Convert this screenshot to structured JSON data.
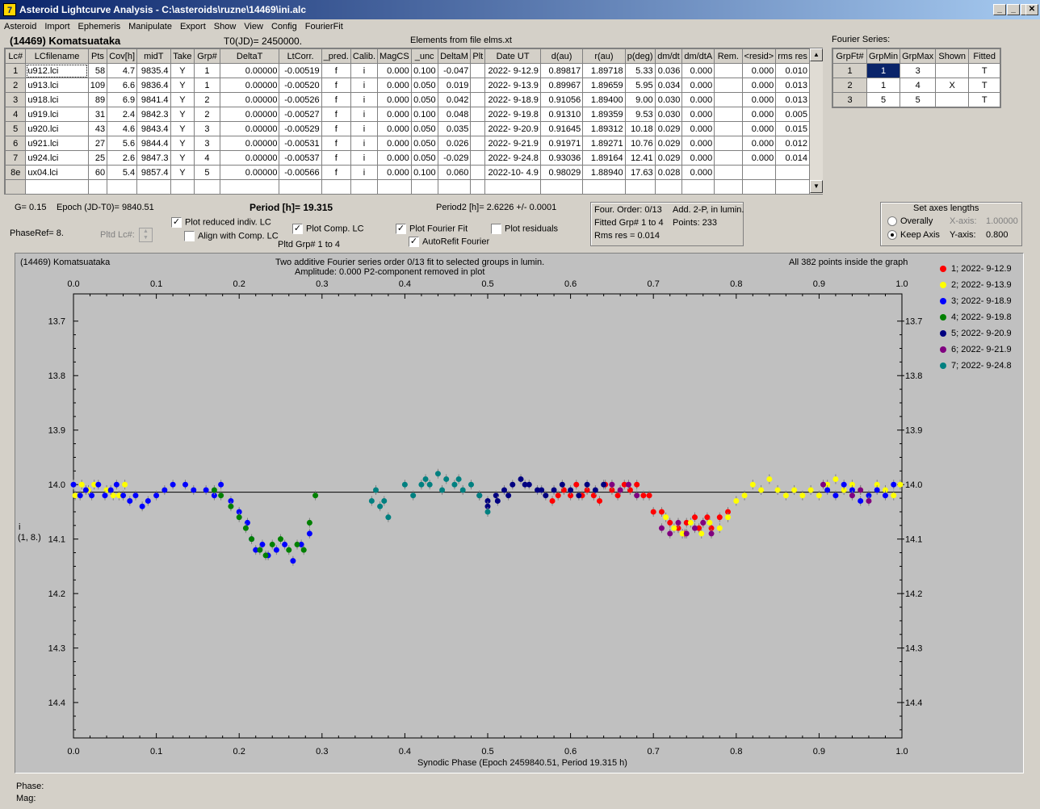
{
  "window": {
    "title": "Asteroid Lightcurve Analysis - C:\\asteroids\\ruzne\\14469\\ini.alc",
    "icon_label": "7"
  },
  "menu": [
    "Asteroid",
    "Import",
    "Ephemeris",
    "Manipulate",
    "Export",
    "Show",
    "View",
    "Config",
    "FourierFit"
  ],
  "header": {
    "asteroid": "(14469) Komatsuataka",
    "t0": "T0(JD)= 2450000.",
    "elements": "Elements from file elms.xt"
  },
  "lc_table": {
    "columns": [
      "Lc#",
      "LCfilename",
      "Pts",
      "Cov[h]",
      "midT",
      "Take",
      "Grp#",
      "DeltaT",
      "LtCorr.",
      "_pred.",
      "Calib.",
      "MagCS",
      "_unc",
      "DeltaM",
      "Plt",
      "Date UT",
      "d(au)",
      "r(au)",
      "p(deg)",
      "dm/dt",
      "dm/dtA",
      "Rem.",
      "<resid>",
      "rms res"
    ],
    "rows": [
      [
        "1",
        "u912.lci",
        "58",
        "4.7",
        "9835.4",
        "Y",
        "1",
        "0.00000",
        "-0.00519",
        "f",
        "i",
        "0.000",
        "0.100",
        "-0.047",
        "",
        "2022- 9-12.9",
        "0.89817",
        "1.89718",
        "5.33",
        "0.036",
        "0.000",
        "",
        "0.000",
        "0.010"
      ],
      [
        "2",
        "u913.lci",
        "109",
        "6.6",
        "9836.4",
        "Y",
        "1",
        "0.00000",
        "-0.00520",
        "f",
        "i",
        "0.000",
        "0.050",
        "0.019",
        "",
        "2022- 9-13.9",
        "0.89967",
        "1.89659",
        "5.95",
        "0.034",
        "0.000",
        "",
        "0.000",
        "0.013"
      ],
      [
        "3",
        "u918.lci",
        "89",
        "6.9",
        "9841.4",
        "Y",
        "2",
        "0.00000",
        "-0.00526",
        "f",
        "i",
        "0.000",
        "0.050",
        "0.042",
        "",
        "2022- 9-18.9",
        "0.91056",
        "1.89400",
        "9.00",
        "0.030",
        "0.000",
        "",
        "0.000",
        "0.013"
      ],
      [
        "4",
        "u919.lci",
        "31",
        "2.4",
        "9842.3",
        "Y",
        "2",
        "0.00000",
        "-0.00527",
        "f",
        "i",
        "0.000",
        "0.100",
        "0.048",
        "",
        "2022- 9-19.8",
        "0.91310",
        "1.89359",
        "9.53",
        "0.030",
        "0.000",
        "",
        "0.000",
        "0.005"
      ],
      [
        "5",
        "u920.lci",
        "43",
        "4.6",
        "9843.4",
        "Y",
        "3",
        "0.00000",
        "-0.00529",
        "f",
        "i",
        "0.000",
        "0.050",
        "0.035",
        "",
        "2022- 9-20.9",
        "0.91645",
        "1.89312",
        "10.18",
        "0.029",
        "0.000",
        "",
        "0.000",
        "0.015"
      ],
      [
        "6",
        "u921.lci",
        "27",
        "5.6",
        "9844.4",
        "Y",
        "3",
        "0.00000",
        "-0.00531",
        "f",
        "i",
        "0.000",
        "0.050",
        "0.026",
        "",
        "2022- 9-21.9",
        "0.91971",
        "1.89271",
        "10.76",
        "0.029",
        "0.000",
        "",
        "0.000",
        "0.012"
      ],
      [
        "7",
        "u924.lci",
        "25",
        "2.6",
        "9847.3",
        "Y",
        "4",
        "0.00000",
        "-0.00537",
        "f",
        "i",
        "0.000",
        "0.050",
        "-0.029",
        "",
        "2022- 9-24.8",
        "0.93036",
        "1.89164",
        "12.41",
        "0.029",
        "0.000",
        "",
        "0.000",
        "0.014"
      ],
      [
        "8e",
        "ux04.lci",
        "60",
        "5.4",
        "9857.4",
        "Y",
        "5",
        "0.00000",
        "-0.00566",
        "f",
        "i",
        "0.000",
        "0.100",
        "0.060",
        "",
        "2022-10- 4.9",
        "0.98029",
        "1.88940",
        "17.63",
        "0.028",
        "0.000",
        "",
        "",
        ""
      ]
    ]
  },
  "fourier_series": {
    "title": "Fourier Series:",
    "columns": [
      "GrpFt#",
      "GrpMin",
      "GrpMax",
      "Shown",
      "Fitted"
    ],
    "rows": [
      [
        "1",
        "1",
        "3",
        "",
        "T"
      ],
      [
        "2",
        "1",
        "4",
        "X",
        "T"
      ],
      [
        "3",
        "5",
        "5",
        "",
        "T"
      ]
    ]
  },
  "controls": {
    "g_value": "G= 0.15",
    "epoch": "Epoch (JD-T0)= 9840.51",
    "period": "Period [h]= 19.315",
    "period2": "Period2 [h]= 2.6226 +/- 0.0001",
    "phase_ref": "PhaseRef= 8.",
    "pltd_lc": "Pltd Lc#:",
    "plot_reduced": "Plot reduced indiv. LC",
    "align_comp": "Align with Comp. LC",
    "plot_comp": "Plot Comp. LC",
    "pltd_grp": "Pltd Grp#  1   to   4",
    "plot_fourier": "Plot Fourier Fit",
    "autorefit": "AutoRefit Fourier",
    "plot_residuals": "Plot residuals",
    "check_mark": "✓"
  },
  "fourier_info": {
    "order": "Four. Order:  0/13",
    "add": "Add. 2-P, in lumin.",
    "fitted": "Fitted Grp# 1 to 4",
    "points": "Points: 233",
    "rms": "Rms res     = 0.014"
  },
  "axes_box": {
    "title": "Set axes lengths",
    "overally": "Overally",
    "keep_axis": "Keep Axis",
    "xaxis_label": "X-axis:",
    "xaxis_value": "1.00000",
    "yaxis_label": "Y-axis:",
    "yaxis_value": "0.800"
  },
  "plot_text": {
    "name": "(14469) Komatsuataka",
    "subtitle1": "Two additive Fourier series order 0/13 fit to selected groups in lumin.",
    "subtitle2": "Amplitude: 0.000                  P2-component removed in plot",
    "points_info": "All 382 points inside the graph",
    "ylabel1": "i",
    "ylabel2": "(1, 8.)",
    "xlabel": "Synodic Phase (Epoch 2459840.51, Period 19.315 h)"
  },
  "status": {
    "phase": "Phase:",
    "mag": "Mag:"
  },
  "chart_data": {
    "type": "scatter",
    "xlabel": "Synodic Phase (Epoch 2459840.51, Period 19.315 h)",
    "ylabel": "i (1, 8.)",
    "xlim": [
      0.0,
      1.0
    ],
    "ylim": [
      13.65,
      14.465
    ],
    "y_inverted": true,
    "xticks": [
      "0.0",
      "0.1",
      "0.2",
      "0.3",
      "0.4",
      "0.5",
      "0.6",
      "0.7",
      "0.8",
      "0.9",
      "1.0"
    ],
    "yticks": [
      "13.7",
      "13.8",
      "13.9",
      "14.0",
      "14.1",
      "14.2",
      "14.3",
      "14.4"
    ],
    "fit_line": 14.014,
    "legend_position": "right",
    "series": [
      {
        "name": "1; 2022- 9-12.9",
        "color": "#ff0000",
        "points": [
          [
            0.578,
            14.03
          ],
          [
            0.585,
            14.02
          ],
          [
            0.592,
            14.01
          ],
          [
            0.6,
            14.02
          ],
          [
            0.607,
            14.0
          ],
          [
            0.614,
            14.02
          ],
          [
            0.62,
            14.01
          ],
          [
            0.628,
            14.02
          ],
          [
            0.635,
            14.03
          ],
          [
            0.642,
            14.0
          ],
          [
            0.65,
            14.01
          ],
          [
            0.657,
            14.02
          ],
          [
            0.665,
            14.0
          ],
          [
            0.672,
            14.01
          ],
          [
            0.68,
            14.0
          ],
          [
            0.688,
            14.02
          ],
          [
            0.695,
            14.02
          ],
          [
            0.7,
            14.05
          ],
          [
            0.71,
            14.05
          ],
          [
            0.72,
            14.07
          ],
          [
            0.73,
            14.08
          ],
          [
            0.74,
            14.07
          ],
          [
            0.75,
            14.06
          ],
          [
            0.76,
            14.07
          ],
          [
            0.77,
            14.08
          ],
          [
            0.78,
            14.06
          ],
          [
            0.79,
            14.05
          ],
          [
            0.738,
            14.09
          ],
          [
            0.755,
            14.08
          ],
          [
            0.765,
            14.06
          ]
        ]
      },
      {
        "name": "2; 2022- 9-13.9",
        "color": "#ffff00",
        "points": [
          [
            0.002,
            14.02
          ],
          [
            0.01,
            14.0
          ],
          [
            0.018,
            14.01
          ],
          [
            0.025,
            14.0
          ],
          [
            0.04,
            14.01
          ],
          [
            0.048,
            14.02
          ],
          [
            0.055,
            14.02
          ],
          [
            0.062,
            14.0
          ],
          [
            0.715,
            14.06
          ],
          [
            0.725,
            14.08
          ],
          [
            0.735,
            14.09
          ],
          [
            0.745,
            14.07
          ],
          [
            0.758,
            14.09
          ],
          [
            0.768,
            14.07
          ],
          [
            0.78,
            14.08
          ],
          [
            0.79,
            14.06
          ],
          [
            0.8,
            14.03
          ],
          [
            0.81,
            14.02
          ],
          [
            0.82,
            14.0
          ],
          [
            0.83,
            14.01
          ],
          [
            0.84,
            13.99
          ],
          [
            0.85,
            14.01
          ],
          [
            0.86,
            14.02
          ],
          [
            0.87,
            14.01
          ],
          [
            0.88,
            14.02
          ],
          [
            0.89,
            14.01
          ],
          [
            0.9,
            14.02
          ],
          [
            0.91,
            14.0
          ],
          [
            0.92,
            13.99
          ],
          [
            0.93,
            14.01
          ],
          [
            0.94,
            14.0
          ],
          [
            0.95,
            14.01
          ],
          [
            0.96,
            14.02
          ],
          [
            0.97,
            14.0
          ],
          [
            0.98,
            14.01
          ],
          [
            0.99,
            14.02
          ],
          [
            0.998,
            14.0
          ]
        ]
      },
      {
        "name": "3; 2022- 9-18.9",
        "color": "#0000ff",
        "points": [
          [
            0.0,
            14.0
          ],
          [
            0.008,
            14.02
          ],
          [
            0.015,
            14.01
          ],
          [
            0.022,
            14.02
          ],
          [
            0.03,
            14.0
          ],
          [
            0.038,
            14.02
          ],
          [
            0.045,
            14.01
          ],
          [
            0.052,
            14.0
          ],
          [
            0.06,
            14.02
          ],
          [
            0.068,
            14.03
          ],
          [
            0.075,
            14.02
          ],
          [
            0.083,
            14.04
          ],
          [
            0.09,
            14.03
          ],
          [
            0.1,
            14.02
          ],
          [
            0.11,
            14.01
          ],
          [
            0.12,
            14.0
          ],
          [
            0.135,
            14.0
          ],
          [
            0.145,
            14.01
          ],
          [
            0.16,
            14.01
          ],
          [
            0.17,
            14.02
          ],
          [
            0.178,
            14.0
          ],
          [
            0.19,
            14.03
          ],
          [
            0.2,
            14.05
          ],
          [
            0.21,
            14.07
          ],
          [
            0.215,
            14.1
          ],
          [
            0.22,
            14.12
          ],
          [
            0.228,
            14.11
          ],
          [
            0.235,
            14.13
          ],
          [
            0.245,
            14.12
          ],
          [
            0.255,
            14.11
          ],
          [
            0.265,
            14.14
          ],
          [
            0.275,
            14.11
          ],
          [
            0.285,
            14.09
          ],
          [
            0.91,
            14.01
          ],
          [
            0.92,
            14.02
          ],
          [
            0.93,
            14.0
          ],
          [
            0.94,
            14.01
          ],
          [
            0.95,
            14.03
          ],
          [
            0.96,
            14.02
          ],
          [
            0.97,
            14.01
          ],
          [
            0.98,
            14.02
          ],
          [
            0.99,
            14.0
          ]
        ]
      },
      {
        "name": "4; 2022- 9-19.8",
        "color": "#008000",
        "points": [
          [
            0.17,
            14.01
          ],
          [
            0.178,
            14.02
          ],
          [
            0.19,
            14.04
          ],
          [
            0.2,
            14.06
          ],
          [
            0.208,
            14.08
          ],
          [
            0.215,
            14.1
          ],
          [
            0.225,
            14.12
          ],
          [
            0.232,
            14.13
          ],
          [
            0.24,
            14.11
          ],
          [
            0.25,
            14.1
          ],
          [
            0.26,
            14.12
          ],
          [
            0.27,
            14.11
          ],
          [
            0.278,
            14.12
          ],
          [
            0.285,
            14.07
          ],
          [
            0.292,
            14.02
          ]
        ]
      },
      {
        "name": "5; 2022- 9-20.9",
        "color": "#000080",
        "points": [
          [
            0.49,
            14.02
          ],
          [
            0.5,
            14.03
          ],
          [
            0.51,
            14.02
          ],
          [
            0.52,
            14.01
          ],
          [
            0.53,
            14.0
          ],
          [
            0.54,
            13.99
          ],
          [
            0.55,
            14.0
          ],
          [
            0.56,
            14.01
          ],
          [
            0.57,
            14.02
          ],
          [
            0.58,
            14.01
          ],
          [
            0.59,
            14.0
          ],
          [
            0.6,
            14.01
          ],
          [
            0.61,
            14.02
          ],
          [
            0.62,
            14.0
          ],
          [
            0.63,
            14.01
          ],
          [
            0.64,
            14.0
          ],
          [
            0.5,
            14.04
          ],
          [
            0.512,
            14.03
          ],
          [
            0.525,
            14.02
          ],
          [
            0.545,
            14.0
          ],
          [
            0.565,
            14.01
          ]
        ]
      },
      {
        "name": "6; 2022- 9-21.9",
        "color": "#800080",
        "points": [
          [
            0.65,
            14.0
          ],
          [
            0.66,
            14.01
          ],
          [
            0.67,
            14.0
          ],
          [
            0.68,
            14.02
          ],
          [
            0.71,
            14.08
          ],
          [
            0.72,
            14.09
          ],
          [
            0.73,
            14.07
          ],
          [
            0.74,
            14.09
          ],
          [
            0.75,
            14.08
          ],
          [
            0.76,
            14.07
          ],
          [
            0.77,
            14.09
          ],
          [
            0.94,
            14.02
          ],
          [
            0.95,
            14.01
          ],
          [
            0.96,
            14.03
          ],
          [
            0.905,
            14.0
          ]
        ]
      },
      {
        "name": "7; 2022- 9-24.8",
        "color": "#008080",
        "points": [
          [
            0.36,
            14.03
          ],
          [
            0.365,
            14.01
          ],
          [
            0.37,
            14.04
          ],
          [
            0.375,
            14.03
          ],
          [
            0.38,
            14.06
          ],
          [
            0.4,
            14.0
          ],
          [
            0.41,
            14.02
          ],
          [
            0.42,
            14.0
          ],
          [
            0.425,
            13.99
          ],
          [
            0.43,
            14.0
          ],
          [
            0.44,
            13.98
          ],
          [
            0.45,
            13.99
          ],
          [
            0.46,
            14.0
          ],
          [
            0.47,
            14.01
          ],
          [
            0.48,
            14.0
          ],
          [
            0.49,
            14.02
          ],
          [
            0.5,
            14.05
          ],
          [
            0.445,
            14.01
          ],
          [
            0.465,
            13.99
          ]
        ]
      }
    ]
  }
}
